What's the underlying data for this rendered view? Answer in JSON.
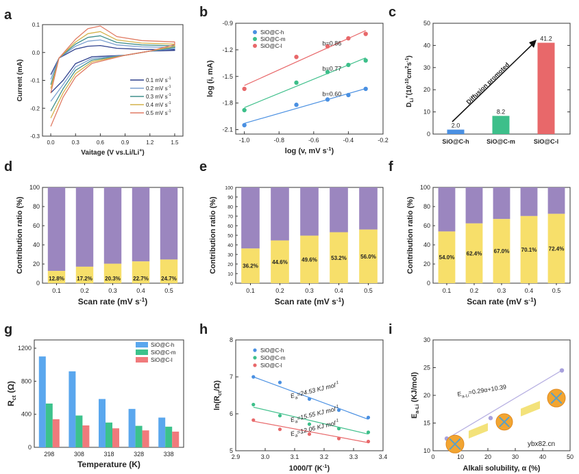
{
  "colors": {
    "h": "#4a90e2",
    "m": "#3dbf8a",
    "l": "#e8686a",
    "purple": "#9b86bf",
    "yellow": "#f7df6a",
    "cv": [
      "#2c3e8c",
      "#7a9fd0",
      "#3f8f8b",
      "#d4b24a",
      "#e07a62"
    ],
    "bar_h": "#5aa7ee",
    "bar_m": "#3cc28c",
    "bar_l": "#f07a7c",
    "arrow": "#111111",
    "line_i": "#b7b0e2",
    "pt_i": "#a7a0dc"
  },
  "chart_data": [
    {
      "panel": "a",
      "type": "line",
      "xlabel": "Vaitage (V vs.Li/Li",
      "xlabel_sup": "+",
      "xlabel_end": ")",
      "ylabel": "Current (mA)",
      "xlim": [
        -0.1,
        1.6
      ],
      "ylim": [
        -0.3,
        0.1
      ],
      "xticks": [
        "0.0",
        "0.3",
        "0.6",
        "0.9",
        "1.2",
        "1.5"
      ],
      "yticks": [
        "-0.3",
        "-0.2",
        "-0.1",
        "0.0",
        "0.1"
      ],
      "legend": [
        "0.1 mV s",
        "0.2 mV s",
        "0.3 mV s",
        "0.4 mV s",
        "0.5 mV s"
      ],
      "legend_sup": "-1",
      "peak_currents": [
        0.025,
        0.045,
        0.06,
        0.075,
        0.095
      ],
      "min_currents": [
        -0.145,
        -0.175,
        -0.21,
        -0.235,
        -0.265
      ]
    },
    {
      "panel": "b",
      "type": "scatter",
      "xlabel": "log (v, mV s",
      "xlabel_sup": "-1",
      "xlabel_end": ")",
      "ylabel": "log (i, mA)",
      "xlim": [
        -1.05,
        -0.2
      ],
      "ylim": [
        -2.15,
        -0.9
      ],
      "xticks": [
        "-1.0",
        "-0.8",
        "-0.6",
        "-0.4",
        "-0.2"
      ],
      "yticks": [
        "-2.1",
        "-1.8",
        "-1.5",
        "-1.2",
        "-0.9"
      ],
      "series": [
        {
          "name": "SiO@C-h",
          "x": [
            -1.0,
            -0.7,
            -0.52,
            -0.4,
            -0.3
          ],
          "y": [
            -2.05,
            -1.82,
            -1.76,
            -1.71,
            -1.64
          ],
          "b": "b=0.60"
        },
        {
          "name": "SiO@C-m",
          "x": [
            -1.0,
            -0.7,
            -0.52,
            -0.4,
            -0.3
          ],
          "y": [
            -1.88,
            -1.57,
            -1.45,
            -1.37,
            -1.32
          ],
          "b": "b=0.77"
        },
        {
          "name": "SiO@C-l",
          "x": [
            -1.0,
            -0.7,
            -0.52,
            -0.4,
            -0.3
          ],
          "y": [
            -1.64,
            -1.28,
            -1.16,
            -1.07,
            -1.02
          ],
          "b": "b=0.86"
        }
      ]
    },
    {
      "panel": "c",
      "type": "bar",
      "categories": [
        "SiO@C-h",
        "SiO@C-m",
        "SiO@C-l"
      ],
      "values": [
        2.0,
        8.2,
        41.2
      ],
      "labels": [
        "2.0",
        "8.2",
        "41.2"
      ],
      "ylim": [
        0,
        50
      ],
      "yticks": [
        "0",
        "10",
        "20",
        "30",
        "40",
        "50"
      ],
      "ylabel": "D",
      "ylabel_sub": "Li",
      "ylabel_sup": "+",
      "ylabel_paren": "(10",
      "ylabel_exp": "-10",
      "ylabel_unit": "cm",
      "ylabel_unit_sup": "2",
      "ylabel_s": "s",
      "ylabel_s_sup": "-1",
      "ylabel_close": ")",
      "annotation": "Diffusion promoted"
    },
    {
      "panel": "d",
      "type": "bar",
      "stacked": true,
      "categories": [
        "0.1",
        "0.2",
        "0.3",
        "0.4",
        "0.5"
      ],
      "values": [
        12.8,
        17.2,
        20.3,
        22.7,
        24.7
      ],
      "labels": [
        "12.8%",
        "17.2%",
        "20.3%",
        "22.7%",
        "24.7%"
      ],
      "ylim": [
        0,
        100
      ],
      "yticks": [
        "0",
        "20",
        "40",
        "60",
        "80",
        "100"
      ],
      "ylabel": "Contribution ratio (%)",
      "xlabel": "Scan rate (mV s",
      "xlabel_sup": "-1",
      "xlabel_end": ")"
    },
    {
      "panel": "e",
      "type": "bar",
      "stacked": true,
      "categories": [
        "0.1",
        "0.2",
        "0.3",
        "0.4",
        "0.5"
      ],
      "values": [
        36.2,
        44.6,
        49.6,
        53.2,
        56.0
      ],
      "labels": [
        "36.2%",
        "44.6%",
        "49.6%",
        "53.2%",
        "56.0%"
      ],
      "ylim": [
        0,
        100
      ],
      "yticks": [
        "0",
        "10",
        "20",
        "30",
        "40",
        "50",
        "60",
        "70",
        "80",
        "90",
        "100"
      ],
      "ylabel": "Contribution ratio (%)",
      "xlabel": "Scan rate (mV s",
      "xlabel_sup": "-1",
      "xlabel_end": ")"
    },
    {
      "panel": "f",
      "type": "bar",
      "stacked": true,
      "categories": [
        "0.1",
        "0.2",
        "0.3",
        "0.4",
        "0.5"
      ],
      "values": [
        54.0,
        62.4,
        67.0,
        70.1,
        72.4
      ],
      "labels": [
        "54.0%",
        "62.4%",
        "67.0%",
        "70.1%",
        "72.4%"
      ],
      "ylim": [
        0,
        100
      ],
      "yticks": [
        "0",
        "20",
        "40",
        "60",
        "80",
        "100"
      ],
      "ylabel": "Contribution ratio (%)",
      "xlabel": "Scan rate (mV s",
      "xlabel_sup": "-1",
      "xlabel_end": ")"
    },
    {
      "panel": "g",
      "type": "bar",
      "categories": [
        "298",
        "308",
        "318",
        "328",
        "338"
      ],
      "series": [
        {
          "name": "SiO@C-h",
          "values": [
            1100,
            920,
            585,
            465,
            360
          ]
        },
        {
          "name": "SiO@C-m",
          "values": [
            530,
            385,
            300,
            260,
            250
          ]
        },
        {
          "name": "SiO@C-l",
          "values": [
            340,
            265,
            230,
            205,
            190
          ]
        }
      ],
      "ylim": [
        0,
        1300
      ],
      "yticks": [
        "0",
        "400",
        "800",
        "1200"
      ],
      "ylabel": "R",
      "ylabel_sub": "ct",
      "ylabel_end": " (Ω)",
      "xlabel": "Temperature (K)"
    },
    {
      "panel": "h",
      "type": "scatter",
      "xlim": [
        2.9,
        3.4
      ],
      "ylim": [
        5,
        8
      ],
      "xticks": [
        "2.9",
        "3.0",
        "3.1",
        "3.2",
        "3.3",
        "3.4"
      ],
      "yticks": [
        "5",
        "6",
        "7",
        "8"
      ],
      "xlabel": "1000/T (K",
      "xlabel_sup": "-1",
      "xlabel_end": ")",
      "ylabel": "ln(R",
      "ylabel_sub": "ct",
      "ylabel_end": "/Ω)",
      "series": [
        {
          "name": "SiO@C-h",
          "x": [
            2.96,
            3.05,
            3.15,
            3.25,
            3.35
          ],
          "y": [
            7.0,
            6.85,
            6.4,
            6.1,
            5.9
          ],
          "fit": [
            7.0,
            5.85
          ],
          "ea": "=24.53 KJ mol"
        },
        {
          "name": "SiO@C-m",
          "x": [
            2.96,
            3.05,
            3.15,
            3.25,
            3.35
          ],
          "y": [
            6.25,
            5.95,
            5.72,
            5.6,
            5.5
          ],
          "fit": [
            6.18,
            5.45
          ],
          "ea": "=15.55 KJ mol"
        },
        {
          "name": "SiO@C-l",
          "x": [
            2.96,
            3.05,
            3.15,
            3.25,
            3.35
          ],
          "y": [
            5.83,
            5.58,
            5.45,
            5.33,
            5.25
          ],
          "fit": [
            5.8,
            5.22
          ],
          "ea": "=12.06 KJ mol"
        }
      ],
      "ea_prefix": "E",
      "ea_sub": "a",
      "ea_sup": "-1"
    },
    {
      "panel": "i",
      "type": "scatter",
      "xlim": [
        0,
        50
      ],
      "ylim": [
        10,
        30
      ],
      "xticks": [
        "0",
        "10",
        "20",
        "30",
        "40",
        "50"
      ],
      "yticks": [
        "10",
        "15",
        "20",
        "25",
        "30"
      ],
      "x": [
        5,
        21,
        47
      ],
      "y": [
        12.2,
        15.9,
        24.5
      ],
      "fit_label": "=0.29α+10.39",
      "fit_prefix": "E",
      "fit_sub": "a-Li",
      "xlabel": "Alkali solubility, α (%)",
      "ylabel": "E",
      "ylabel_sub": "a-Li",
      "ylabel_end": " (KJ/mol)"
    }
  ],
  "panel_letters": [
    "a",
    "b",
    "c",
    "d",
    "e",
    "f",
    "g",
    "h",
    "i"
  ],
  "watermark": "ybx82.cn"
}
